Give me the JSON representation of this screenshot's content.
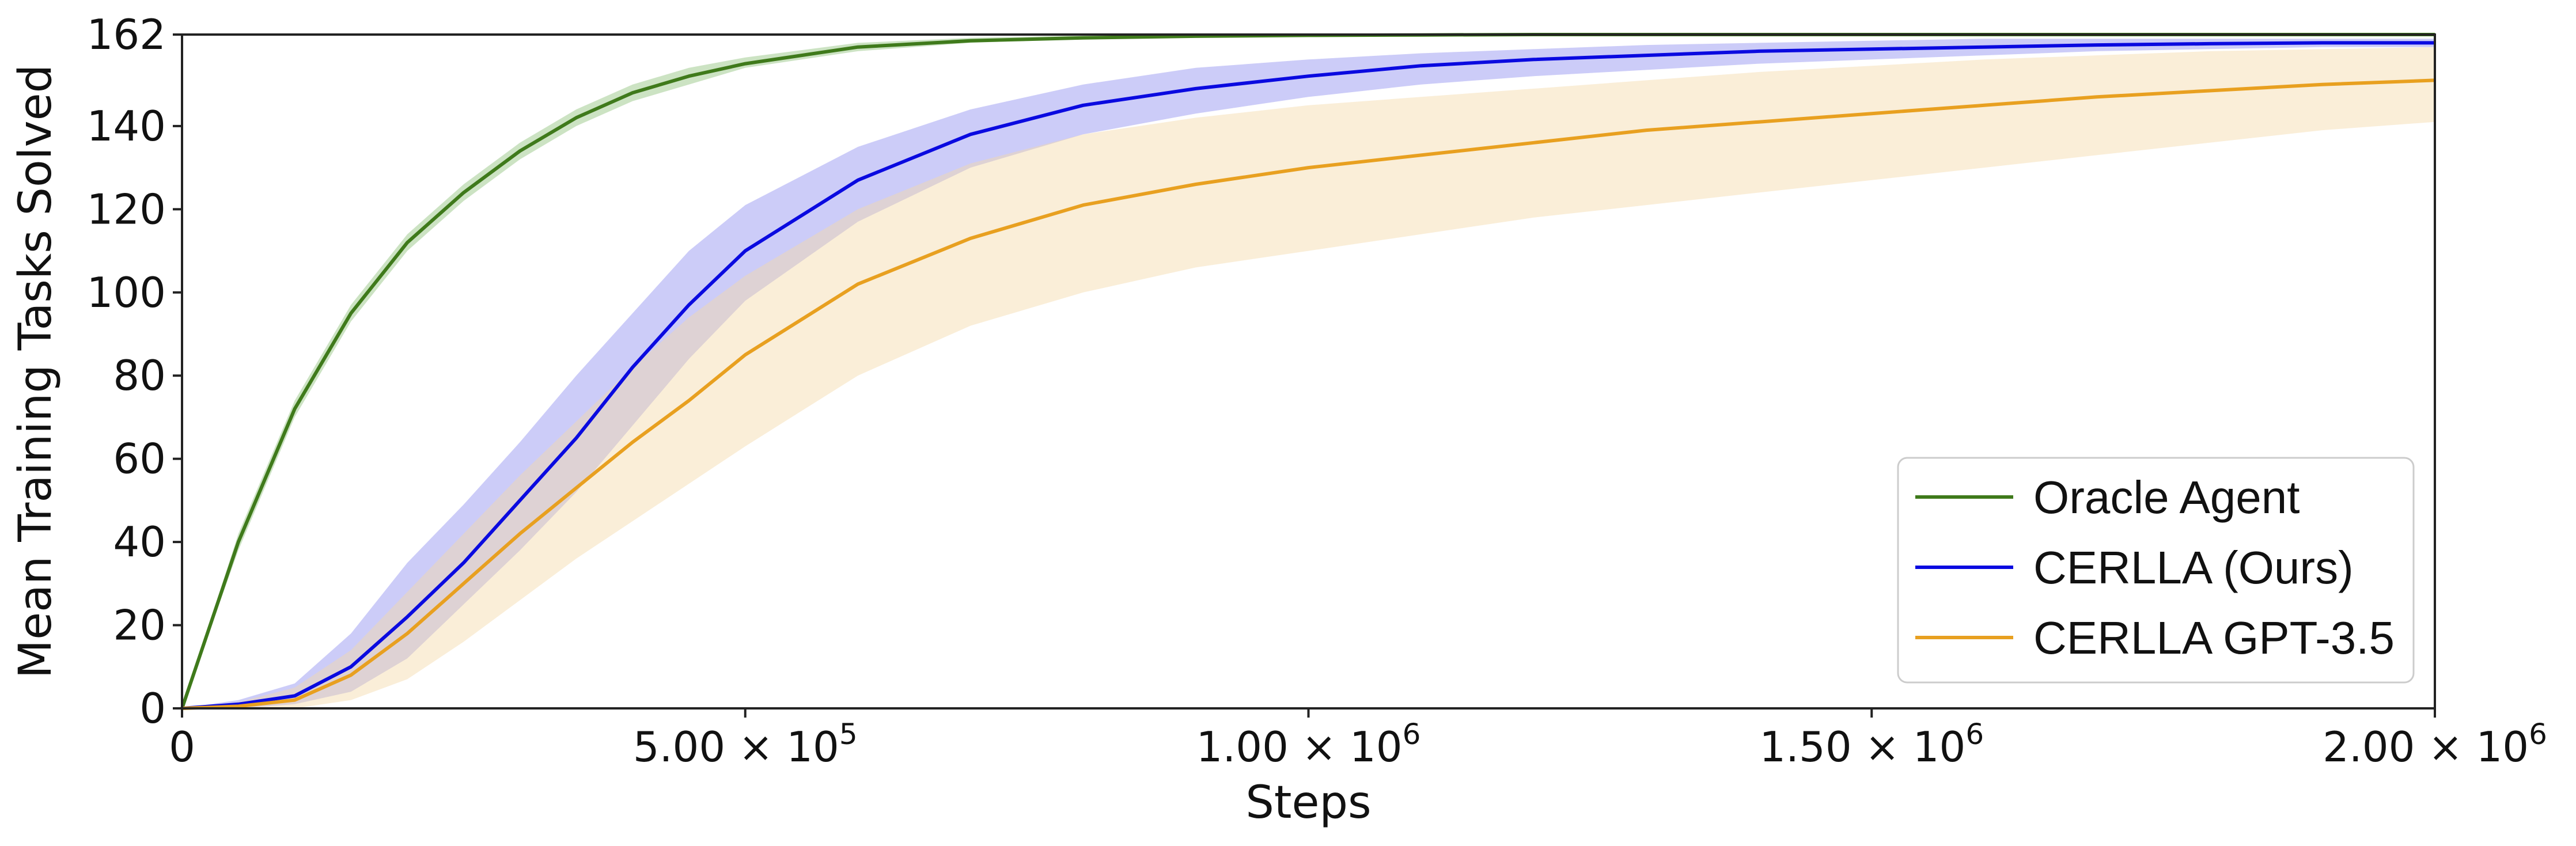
{
  "chart_data": {
    "type": "line",
    "xlabel": "Steps",
    "ylabel": "Mean Training Tasks Solved",
    "xlim": [
      0,
      2000000
    ],
    "ylim": [
      0,
      162
    ],
    "x_ticks": [
      {
        "value": 0,
        "label": "0"
      },
      {
        "value": 500000,
        "mantissa": "5.00",
        "times": "×",
        "base": "10",
        "exp": "5"
      },
      {
        "value": 1000000,
        "mantissa": "1.00",
        "times": "×",
        "base": "10",
        "exp": "6"
      },
      {
        "value": 1500000,
        "mantissa": "1.50",
        "times": "×",
        "base": "10",
        "exp": "6"
      },
      {
        "value": 2000000,
        "mantissa": "2.00",
        "times": "×",
        "base": "10",
        "exp": "6"
      }
    ],
    "y_ticks": [
      0,
      20,
      40,
      60,
      80,
      100,
      120,
      140,
      162
    ],
    "reference_line": {
      "y": 162,
      "style": "dashed",
      "color": "#4a7c1e"
    },
    "legend_position": "lower-right",
    "x": [
      0,
      50000,
      100000,
      150000,
      200000,
      250000,
      300000,
      350000,
      400000,
      450000,
      500000,
      600000,
      700000,
      800000,
      900000,
      1000000,
      1100000,
      1200000,
      1300000,
      1400000,
      1500000,
      1600000,
      1700000,
      1800000,
      1900000,
      2000000
    ],
    "series": [
      {
        "name": "Oracle Agent",
        "color": "#3f7a1b",
        "band_color": "#8fc27a",
        "values": [
          0,
          40,
          72,
          95,
          112,
          124,
          134,
          142,
          148,
          152,
          155,
          159,
          160.5,
          161.2,
          161.6,
          161.8,
          161.9,
          162,
          162,
          162,
          162,
          162,
          162,
          162,
          162,
          162
        ],
        "lower": [
          0,
          38,
          70,
          93,
          110,
          122,
          132,
          140,
          146,
          150,
          154,
          158,
          160,
          161,
          161.4,
          161.6,
          161.7,
          161.8,
          161.8,
          161.8,
          161.8,
          161.8,
          161.8,
          161.8,
          161.8,
          161.8
        ],
        "upper": [
          0,
          42,
          74,
          97,
          114,
          126,
          136,
          144,
          150,
          154,
          156.5,
          160,
          161.2,
          161.8,
          162,
          162,
          162,
          162,
          162,
          162,
          162,
          162,
          162,
          162,
          162,
          162
        ]
      },
      {
        "name": "CERLLA (Ours)",
        "color": "#0a0ae0",
        "band_color": "#8f8ff0",
        "values": [
          0,
          1,
          3,
          10,
          22,
          35,
          50,
          65,
          82,
          97,
          110,
          127,
          138,
          145,
          149,
          152,
          154.5,
          156,
          157,
          158,
          158.5,
          159,
          159.5,
          159.8,
          160,
          160
        ],
        "lower": [
          0,
          0,
          1,
          4,
          12,
          25,
          38,
          52,
          68,
          84,
          98,
          117,
          130,
          138,
          143,
          147,
          150,
          152,
          153.5,
          155,
          156,
          157,
          158,
          158.5,
          159,
          159
        ],
        "upper": [
          0,
          2,
          6,
          18,
          35,
          49,
          64,
          80,
          95,
          110,
          121,
          135,
          144,
          150,
          154,
          156,
          157.5,
          158.5,
          159.5,
          160,
          160.5,
          161,
          161,
          161,
          161,
          161
        ]
      },
      {
        "name": "CERLLA GPT-3.5",
        "color": "#e8a020",
        "band_color": "#f5d9a8",
        "values": [
          0,
          0.5,
          2,
          8,
          18,
          30,
          42,
          53,
          64,
          74,
          85,
          102,
          113,
          121,
          126,
          130,
          133,
          136,
          139,
          141,
          143,
          145,
          147,
          148.5,
          150,
          151
        ],
        "lower": [
          0,
          0,
          0,
          2,
          7,
          16,
          26,
          36,
          45,
          54,
          63,
          80,
          92,
          100,
          106,
          110,
          114,
          118,
          121,
          124,
          127,
          130,
          133,
          136,
          139,
          141
        ],
        "upper": [
          0,
          1.5,
          5,
          14,
          28,
          42,
          56,
          69,
          82,
          94,
          104,
          120,
          131,
          138,
          142,
          145,
          147,
          149,
          151,
          153,
          154.5,
          156,
          157,
          158,
          158.5,
          159
        ]
      }
    ]
  }
}
